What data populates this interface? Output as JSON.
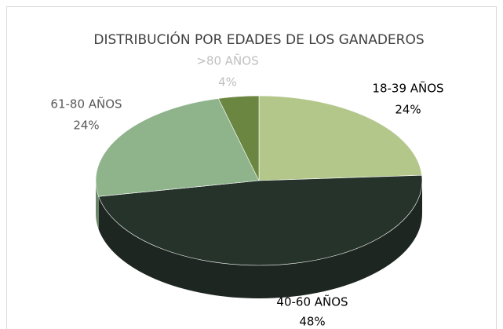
{
  "chart_data": {
    "type": "pie",
    "title": "DISTRIBUCIÓN POR EDADES DE LOS GANADEROS",
    "categories": [
      "18-39 AÑOS",
      "40-60 AÑOS",
      "61-80 AÑOS",
      ">80 AÑOS"
    ],
    "values": [
      24,
      48,
      24,
      4
    ],
    "value_labels": [
      "24%",
      "48%",
      "24%",
      "4%"
    ],
    "colors": [
      "#b3c78b",
      "#26332a",
      "#8fb48c",
      "#6a8640"
    ],
    "label_colors": [
      "#000000",
      "#000000",
      "#595959",
      "#bfbfbf"
    ]
  }
}
